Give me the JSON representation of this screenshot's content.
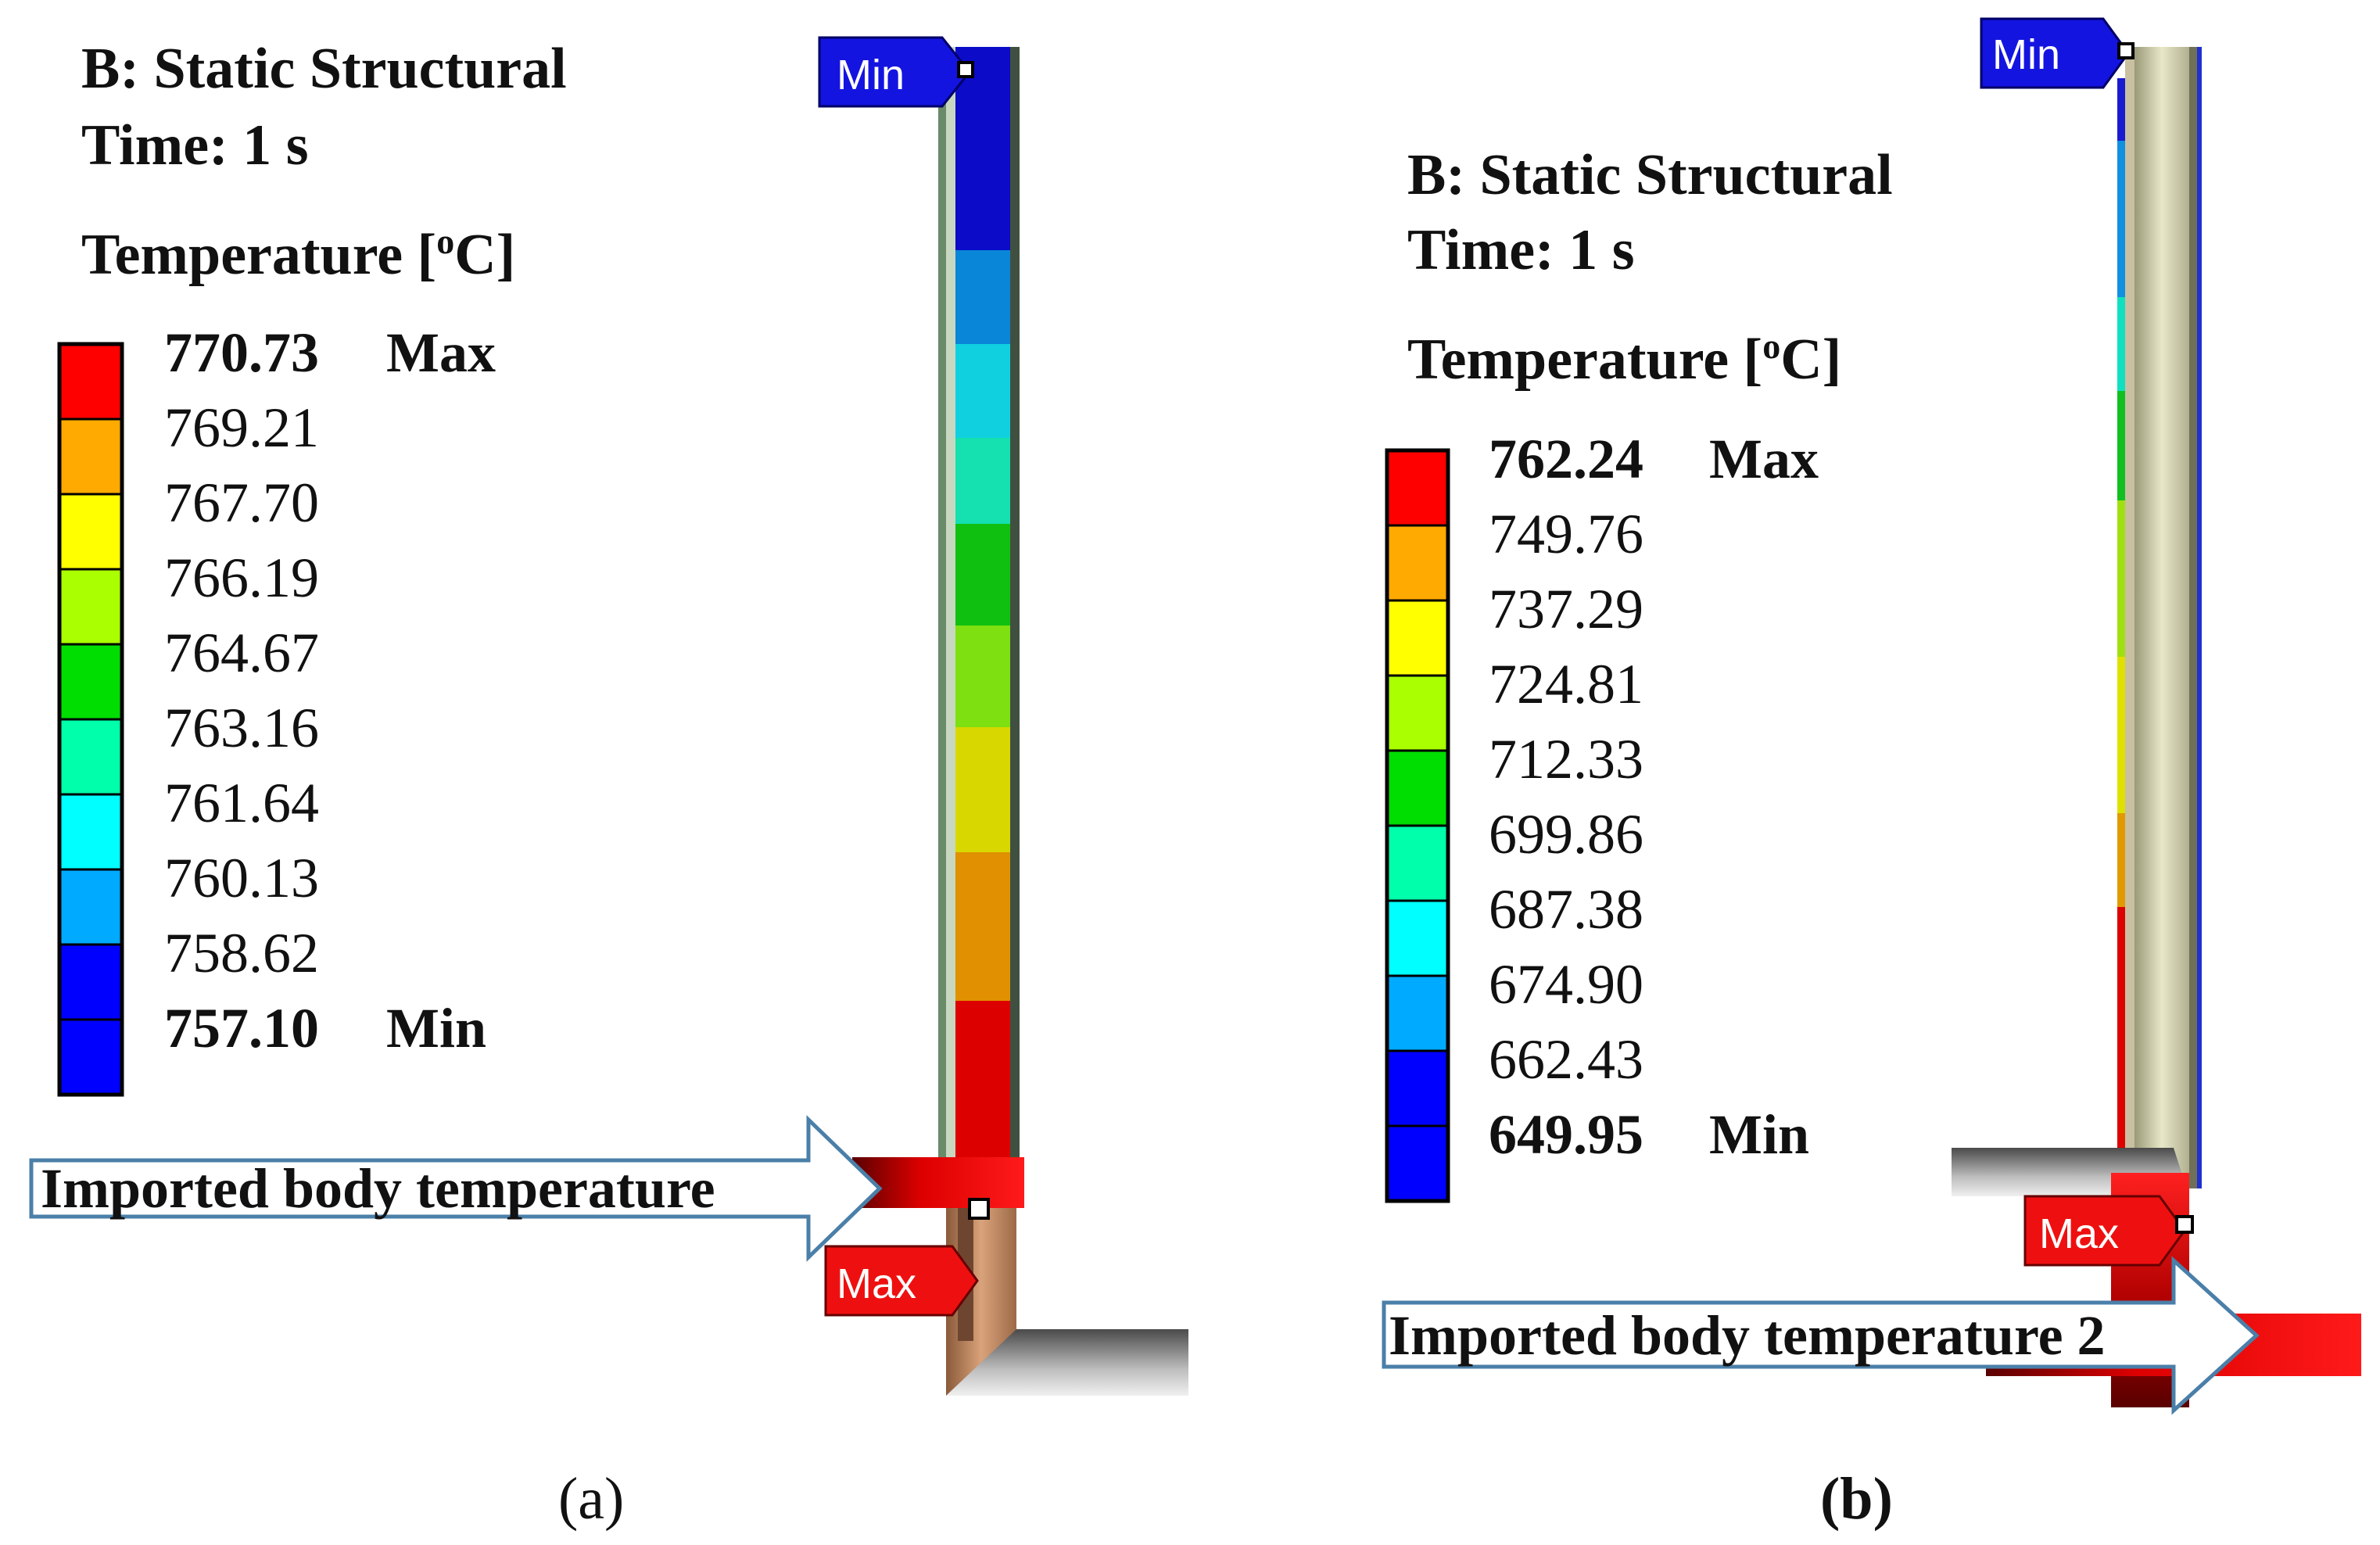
{
  "panels": [
    {
      "id": "a",
      "title": "B: Static Structural",
      "time": "Time: 1 s",
      "quantity": "Temperature [",
      "quantity_sup": "o",
      "quantity_unit": "C]",
      "legend": [
        {
          "value": "770.73",
          "tag": "Max",
          "color": "#ff0000"
        },
        {
          "value": "769.21",
          "tag": "",
          "color": "#ffaa00"
        },
        {
          "value": "767.70",
          "tag": "",
          "color": "#ffff00"
        },
        {
          "value": "766.19",
          "tag": "",
          "color": "#aaff00"
        },
        {
          "value": "764.67",
          "tag": "",
          "color": "#00dd00"
        },
        {
          "value": "763.16",
          "tag": "",
          "color": "#00ffaa"
        },
        {
          "value": "761.64",
          "tag": "",
          "color": "#00ffff"
        },
        {
          "value": "760.13",
          "tag": "",
          "color": "#00aaff"
        },
        {
          "value": "758.62",
          "tag": "",
          "color": "#0000ff"
        },
        {
          "value": "757.10",
          "tag": "Min",
          "color": "#0000ff"
        }
      ],
      "min_probe": "Min",
      "max_probe": "Max",
      "arrow_label": "Imported body temperature",
      "caption": "(a)",
      "colors": {
        "min_tag": "#1414e0",
        "max_tag": "#ee1010",
        "arrow_border": "#4a7fa8"
      }
    },
    {
      "id": "b",
      "title": "B: Static Structural",
      "time": "Time: 1 s",
      "quantity": "Temperature [",
      "quantity_sup": "o",
      "quantity_unit": "C]",
      "legend": [
        {
          "value": "762.24",
          "tag": "Max",
          "color": "#ff0000"
        },
        {
          "value": "749.76",
          "tag": "",
          "color": "#ffaa00"
        },
        {
          "value": "737.29",
          "tag": "",
          "color": "#ffff00"
        },
        {
          "value": "724.81",
          "tag": "",
          "color": "#aaff00"
        },
        {
          "value": "712.33",
          "tag": "",
          "color": "#00dd00"
        },
        {
          "value": "699.86",
          "tag": "",
          "color": "#00ffaa"
        },
        {
          "value": "687.38",
          "tag": "",
          "color": "#00ffff"
        },
        {
          "value": "674.90",
          "tag": "",
          "color": "#00aaff"
        },
        {
          "value": "662.43",
          "tag": "",
          "color": "#0000ff"
        },
        {
          "value": "649.95",
          "tag": "Min",
          "color": "#0000ff"
        }
      ],
      "min_probe": "Min",
      "max_probe": "Max",
      "arrow_label": "Imported body temperature 2",
      "caption": "(b)",
      "colors": {
        "min_tag": "#1414e0",
        "max_tag": "#ee1010",
        "arrow_border": "#4a7fa8"
      }
    }
  ]
}
